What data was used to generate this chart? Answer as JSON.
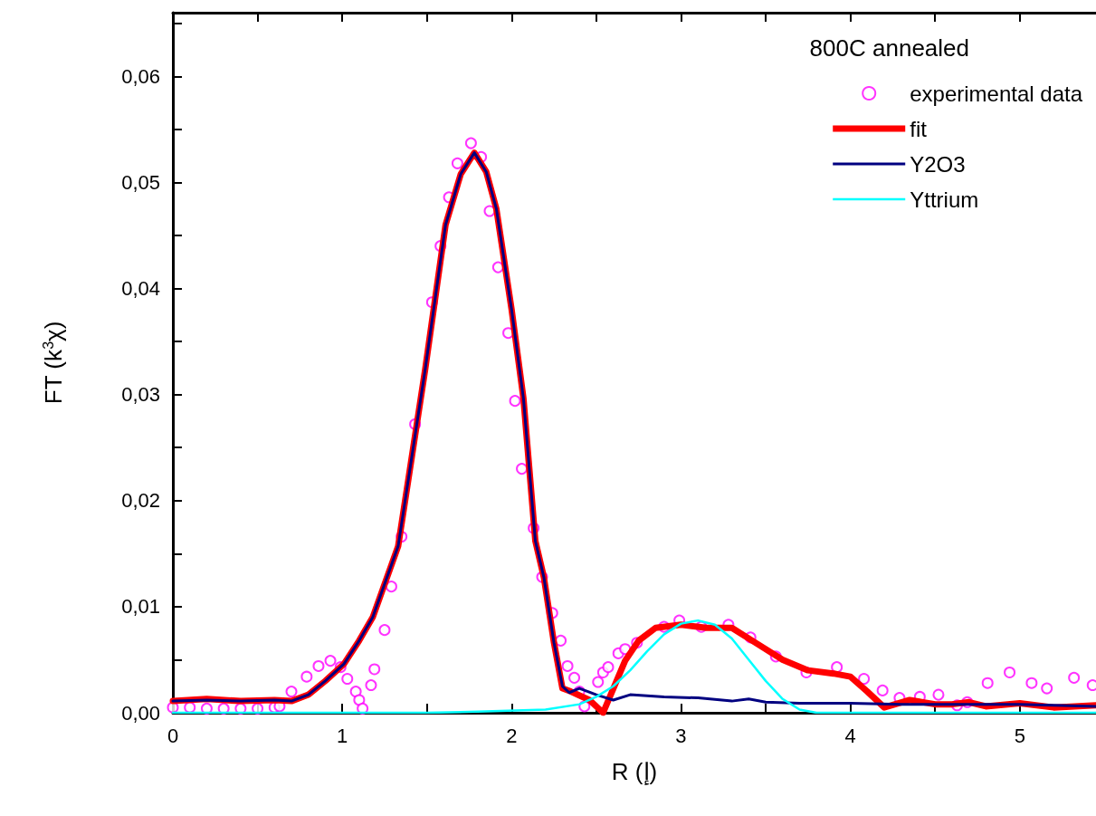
{
  "chart_data": {
    "type": "line",
    "xlabel": "R (إ)",
    "ylabel": "FT (k$^{3}$χ)",
    "legend_title": "800C annealed",
    "legend": "top right",
    "grid": false,
    "xlim": [
      0,
      5.45
    ],
    "xticks": [
      0,
      {
        "value": 0.5,
        "label": null
      },
      1,
      {
        "value": 1.5,
        "label": null
      },
      2,
      {
        "value": 2.5,
        "label": null
      },
      3,
      {
        "value": 3.5,
        "label": null
      },
      4,
      {
        "value": 4.5,
        "label": null
      },
      5
    ],
    "ylim": [
      0,
      0.066
    ],
    "yticks": [
      {
        "value": 0,
        "label": "0,00"
      },
      {
        "value": 0.005,
        "label": null
      },
      {
        "value": 0.01,
        "label": "0,01"
      },
      {
        "value": 0.015,
        "label": null
      },
      {
        "value": 0.02,
        "label": "0,02"
      },
      {
        "value": 0.025,
        "label": null
      },
      {
        "value": 0.03,
        "label": "0,03"
      },
      {
        "value": 0.035,
        "label": null
      },
      {
        "value": 0.04,
        "label": "0,04"
      },
      {
        "value": 0.045,
        "label": null
      },
      {
        "value": 0.05,
        "label": "0,05"
      },
      {
        "value": 0.055,
        "label": null
      },
      {
        "value": 0.06,
        "label": "0,06"
      },
      {
        "value": 0.065,
        "label": null
      }
    ],
    "series": [
      {
        "name": "experimental data",
        "type": "scatter",
        "marker": "circle",
        "color": "#ff00ff",
        "x": [
          0,
          0.1,
          0.2,
          0.3,
          0.4,
          0.5,
          0.6,
          0.63,
          0.7,
          0.79,
          0.86,
          0.93,
          0.99,
          1.03,
          1.08,
          1.1,
          1.12,
          1.17,
          1.19,
          1.25,
          1.29,
          1.35,
          1.43,
          1.53,
          1.58,
          1.63,
          1.68,
          1.76,
          1.82,
          1.87,
          1.92,
          1.98,
          2.02,
          2.06,
          2.13,
          2.18,
          2.24,
          2.29,
          2.33,
          2.37,
          2.4,
          2.43,
          2.51,
          2.54,
          2.57,
          2.63,
          2.67,
          2.74,
          2.9,
          2.99,
          3.12,
          3.28,
          3.41,
          3.56,
          3.74,
          3.92,
          4.08,
          4.19,
          4.29,
          4.41,
          4.52,
          4.63,
          4.69,
          4.81,
          4.94,
          5.07,
          5.16,
          5.32,
          5.43
        ],
        "values": [
          0.0005,
          0.0005,
          0.0004,
          0.0004,
          0.0004,
          0.0004,
          0.0005,
          0.0006,
          0.002,
          0.0034,
          0.0044,
          0.0049,
          0.0043,
          0.0032,
          0.002,
          0.0012,
          0.0004,
          0.0026,
          0.0041,
          0.0078,
          0.0119,
          0.0166,
          0.0272,
          0.0387,
          0.044,
          0.0486,
          0.0518,
          0.0537,
          0.0524,
          0.0473,
          0.042,
          0.0358,
          0.0294,
          0.023,
          0.0174,
          0.0128,
          0.0094,
          0.0068,
          0.0044,
          0.0033,
          0.002,
          0.0006,
          0.0029,
          0.0038,
          0.0043,
          0.0056,
          0.006,
          0.0066,
          0.0081,
          0.0087,
          0.0081,
          0.0083,
          0.0071,
          0.0053,
          0.0038,
          0.0043,
          0.0032,
          0.0021,
          0.0014,
          0.0015,
          0.0017,
          0.0007,
          0.001,
          0.0028,
          0.0038,
          0.0028,
          0.0023,
          0.0033,
          0.0026
        ]
      },
      {
        "name": "fit",
        "marker": "none",
        "color": "#ff0000",
        "x": [
          0,
          0.2,
          0.4,
          0.6,
          0.7,
          0.8,
          0.9,
          1.01,
          1.1,
          1.18,
          1.33,
          1.49,
          1.61,
          1.7,
          1.78,
          1.85,
          1.91,
          2.0,
          2.07,
          2.14,
          2.19,
          2.25,
          2.3,
          2.35,
          2.46,
          2.54,
          2.67,
          2.75,
          2.85,
          3.0,
          3.15,
          3.3,
          3.45,
          3.6,
          3.75,
          3.9,
          4.0,
          4.1,
          4.2,
          4.35,
          4.5,
          4.6,
          4.7,
          4.8,
          5.0,
          5.2,
          5.45
        ],
        "values": [
          0.0011,
          0.0013,
          0.0011,
          0.0012,
          0.0011,
          0.0017,
          0.003,
          0.0046,
          0.0068,
          0.009,
          0.0157,
          0.0324,
          0.046,
          0.0508,
          0.0528,
          0.051,
          0.0475,
          0.038,
          0.0296,
          0.0162,
          0.0128,
          0.0066,
          0.0023,
          0.002,
          0.0012,
          0,
          0.0049,
          0.0068,
          0.008,
          0.0083,
          0.008,
          0.008,
          0.0065,
          0.005,
          0.004,
          0.0037,
          0.0034,
          0.002,
          0.0005,
          0.0012,
          0.0008,
          0.0008,
          0.001,
          0.0006,
          0.0009,
          0.0005,
          0.0007
        ]
      },
      {
        "name": "Y2O3",
        "marker": "none",
        "color": "#000080",
        "x": [
          0,
          0.2,
          0.4,
          0.6,
          0.7,
          0.8,
          0.9,
          1.01,
          1.1,
          1.18,
          1.33,
          1.49,
          1.61,
          1.7,
          1.78,
          1.85,
          1.91,
          2.0,
          2.07,
          2.14,
          2.19,
          2.25,
          2.3,
          2.34,
          2.4,
          2.5,
          2.6,
          2.7,
          2.9,
          3.1,
          3.3,
          3.4,
          3.5,
          3.7,
          4.0,
          4.3,
          4.6,
          5.0,
          5.45
        ],
        "values": [
          0.0011,
          0.0012,
          0.0011,
          0.0012,
          0.0011,
          0.0017,
          0.003,
          0.0046,
          0.0068,
          0.009,
          0.0157,
          0.0324,
          0.046,
          0.0508,
          0.0528,
          0.051,
          0.0475,
          0.038,
          0.0296,
          0.0162,
          0.0128,
          0.0066,
          0.0025,
          0.0019,
          0.0023,
          0.0017,
          0.0012,
          0.0017,
          0.0015,
          0.0014,
          0.0011,
          0.0013,
          0.001,
          0.0009,
          0.0009,
          0.0008,
          0.0008,
          0.0008,
          0.0006
        ]
      },
      {
        "name": "Yttrium",
        "marker": "none",
        "color": "#00ffff",
        "x": [
          0,
          1.5,
          1.8,
          2.2,
          2.4,
          2.5,
          2.6,
          2.7,
          2.8,
          2.9,
          3.0,
          3.1,
          3.2,
          3.3,
          3.4,
          3.5,
          3.6,
          3.7,
          3.8,
          5.45
        ],
        "values": [
          0,
          0,
          0.0001,
          0.0003,
          0.0008,
          0.0015,
          0.0025,
          0.004,
          0.0058,
          0.0074,
          0.0084,
          0.0087,
          0.0083,
          0.007,
          0.005,
          0.003,
          0.0013,
          0.0003,
          0,
          0
        ]
      }
    ]
  }
}
